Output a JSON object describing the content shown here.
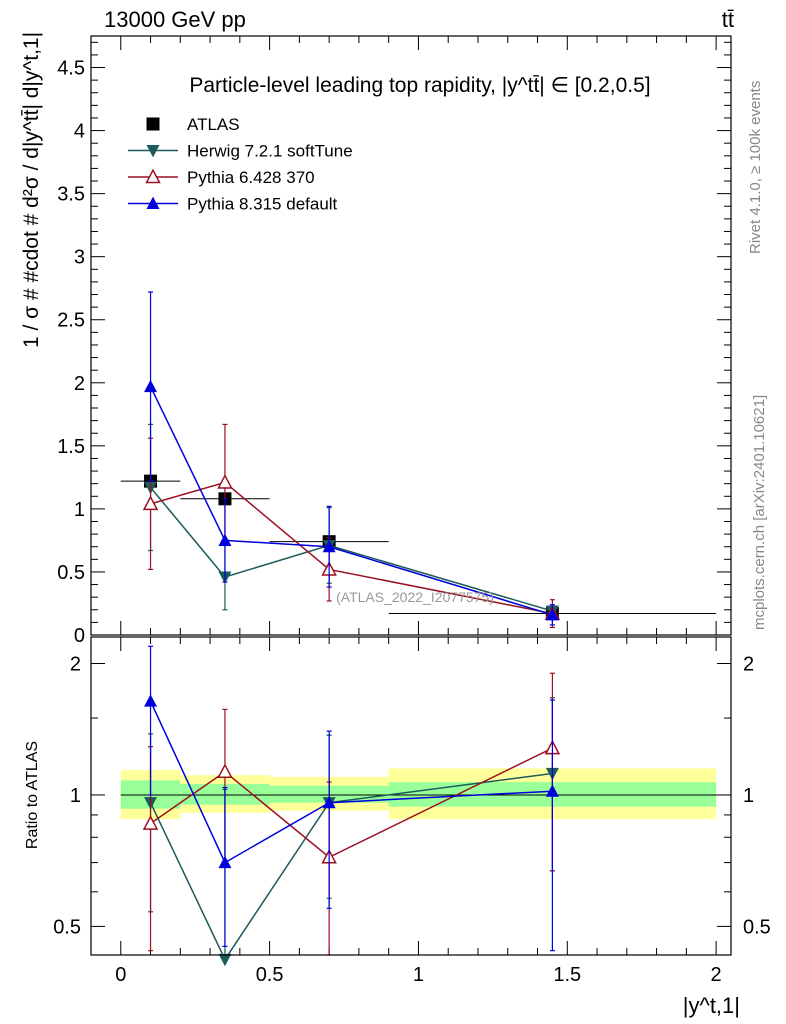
{
  "header": {
    "left": "13000 GeV pp",
    "right": "tt̄"
  },
  "side_labels": {
    "rivet": "Rivet 4.1.0, ≥ 100k events",
    "mcplots": "mcplots.cern.ch [arXiv:2401.10621]"
  },
  "watermark": "(ATLAS_2022_I2077575)",
  "chart_data": [
    {
      "type": "scatter",
      "panel": "main",
      "title": "Particle-level leading top rapidity, |y^tt̄| ∈ [0.2,0.5]",
      "ylabel": "1 / σ # #cdot # d²σ / d|y^tt̄| d|y^t,1|",
      "xlim": [
        -0.1,
        2.05
      ],
      "ylim": [
        0,
        4.75
      ],
      "yticks": [
        0,
        0.5,
        1,
        1.5,
        2,
        2.5,
        3,
        3.5,
        4,
        4.5
      ],
      "ytick_labels": [
        "0",
        "0.5",
        "1",
        "1.5",
        "2",
        "2.5",
        "3",
        "3.5",
        "4",
        "4.5"
      ],
      "series": [
        {
          "name": "ATLAS",
          "color": "#000000",
          "marker": "square",
          "x": [
            0.1,
            0.35,
            0.7,
            1.45
          ],
          "y": [
            1.22,
            1.08,
            0.74,
            0.17
          ],
          "yerr": [
            0.03,
            0.03,
            0.02,
            0.01
          ],
          "xerr": [
            0.1,
            0.15,
            0.2,
            0.55
          ]
        },
        {
          "name": "Herwig 7.2.1 softTune",
          "color": "#1b5b5b",
          "marker": "triangle-down",
          "x": [
            0.1,
            0.35,
            0.7,
            1.45
          ],
          "y": [
            1.17,
            0.46,
            0.71,
            0.19
          ],
          "yerr": [
            0.5,
            0.26,
            0.3,
            0.04
          ]
        },
        {
          "name": "Pythia 6.428 370",
          "color": "#9b1020",
          "marker": "triangle-up-open",
          "x": [
            0.1,
            0.35,
            0.7,
            1.45
          ],
          "y": [
            1.04,
            1.21,
            0.52,
            0.17
          ],
          "yerr": [
            0.52,
            0.46,
            0.25,
            0.11
          ]
        },
        {
          "name": "Pythia 8.315 default",
          "color": "#0000dd",
          "marker": "triangle-up",
          "x": [
            0.1,
            0.35,
            0.7,
            1.45
          ],
          "y": [
            1.97,
            0.75,
            0.7,
            0.16
          ],
          "yerr": [
            0.75,
            0.33,
            0.32,
            0.08
          ]
        }
      ]
    },
    {
      "type": "scatter",
      "panel": "ratio",
      "ylabel": "Ratio to ATLAS",
      "xlabel": "|y^t,1|",
      "xlim": [
        -0.1,
        2.05
      ],
      "ylim": [
        0.43,
        2.3
      ],
      "log_y": true,
      "xticks": [
        0,
        0.5,
        1,
        1.5,
        2
      ],
      "xtick_labels": [
        "0",
        "0.5",
        "1",
        "1.5",
        "2"
      ],
      "yticks": [
        0.5,
        1,
        2
      ],
      "ytick_labels": [
        "0.5",
        "1",
        "2"
      ],
      "bands": {
        "bins": [
          [
            0,
            0.2
          ],
          [
            0.2,
            0.5
          ],
          [
            0.5,
            0.9
          ],
          [
            0.9,
            2.0
          ]
        ],
        "green": [
          [
            0.93,
            1.08
          ],
          [
            0.95,
            1.06
          ],
          [
            0.96,
            1.05
          ],
          [
            0.94,
            1.07
          ]
        ],
        "yellow": [
          [
            0.88,
            1.14
          ],
          [
            0.91,
            1.11
          ],
          [
            0.92,
            1.1
          ],
          [
            0.88,
            1.15
          ]
        ],
        "green_color": "#99ff99",
        "yellow_color": "#ffff99"
      },
      "series": [
        {
          "name": "Herwig 7.2.1 softTune",
          "color": "#1b5b5b",
          "marker": "triangle-down",
          "x": [
            0.1,
            0.35,
            0.7,
            1.45
          ],
          "y": [
            0.96,
            0.42,
            0.96,
            1.12
          ],
          "ylo": [
            0.54,
            0.28,
            0.58,
            0.67
          ],
          "yhi": [
            1.38,
            1.03,
            1.37,
            1.67
          ]
        },
        {
          "name": "Pythia 6.428 370",
          "color": "#9b1020",
          "marker": "triangle-up-open",
          "x": [
            0.1,
            0.35,
            0.7,
            1.45
          ],
          "y": [
            0.86,
            1.13,
            0.72,
            1.28
          ],
          "ylo": [
            0.44,
            0.7,
            0.38,
            0.67
          ],
          "yhi": [
            1.29,
            1.57,
            1.07,
            1.9
          ]
        },
        {
          "name": "Pythia 8.315 default",
          "color": "#0000dd",
          "marker": "triangle-up",
          "x": [
            0.1,
            0.35,
            0.7,
            1.45
          ],
          "y": [
            1.64,
            0.7,
            0.96,
            1.02
          ],
          "ylo": [
            1.0,
            0.45,
            0.55,
            0.44
          ],
          "yhi": [
            2.19,
            1.04,
            1.4,
            1.65
          ]
        }
      ]
    }
  ]
}
